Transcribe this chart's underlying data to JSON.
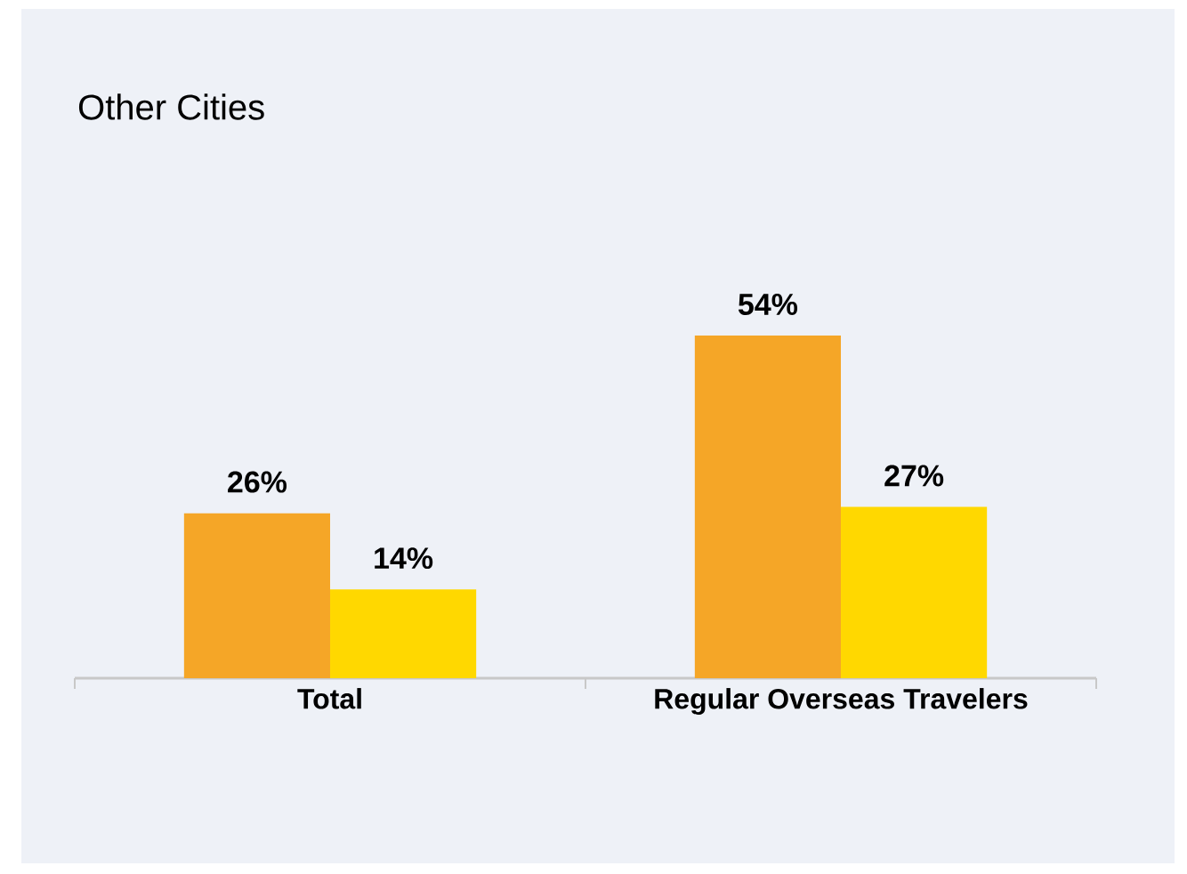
{
  "chart_data": {
    "type": "bar",
    "title": "Other Cities",
    "categories": [
      "Total",
      "Regular Overseas Travelers"
    ],
    "series": [
      {
        "color": "#f5a627",
        "values": [
          26,
          54
        ],
        "value_labels": [
          "26%",
          "54%"
        ]
      },
      {
        "color": "#ffd800",
        "values": [
          14,
          27
        ],
        "value_labels": [
          "14%",
          "27%"
        ]
      }
    ]
  }
}
